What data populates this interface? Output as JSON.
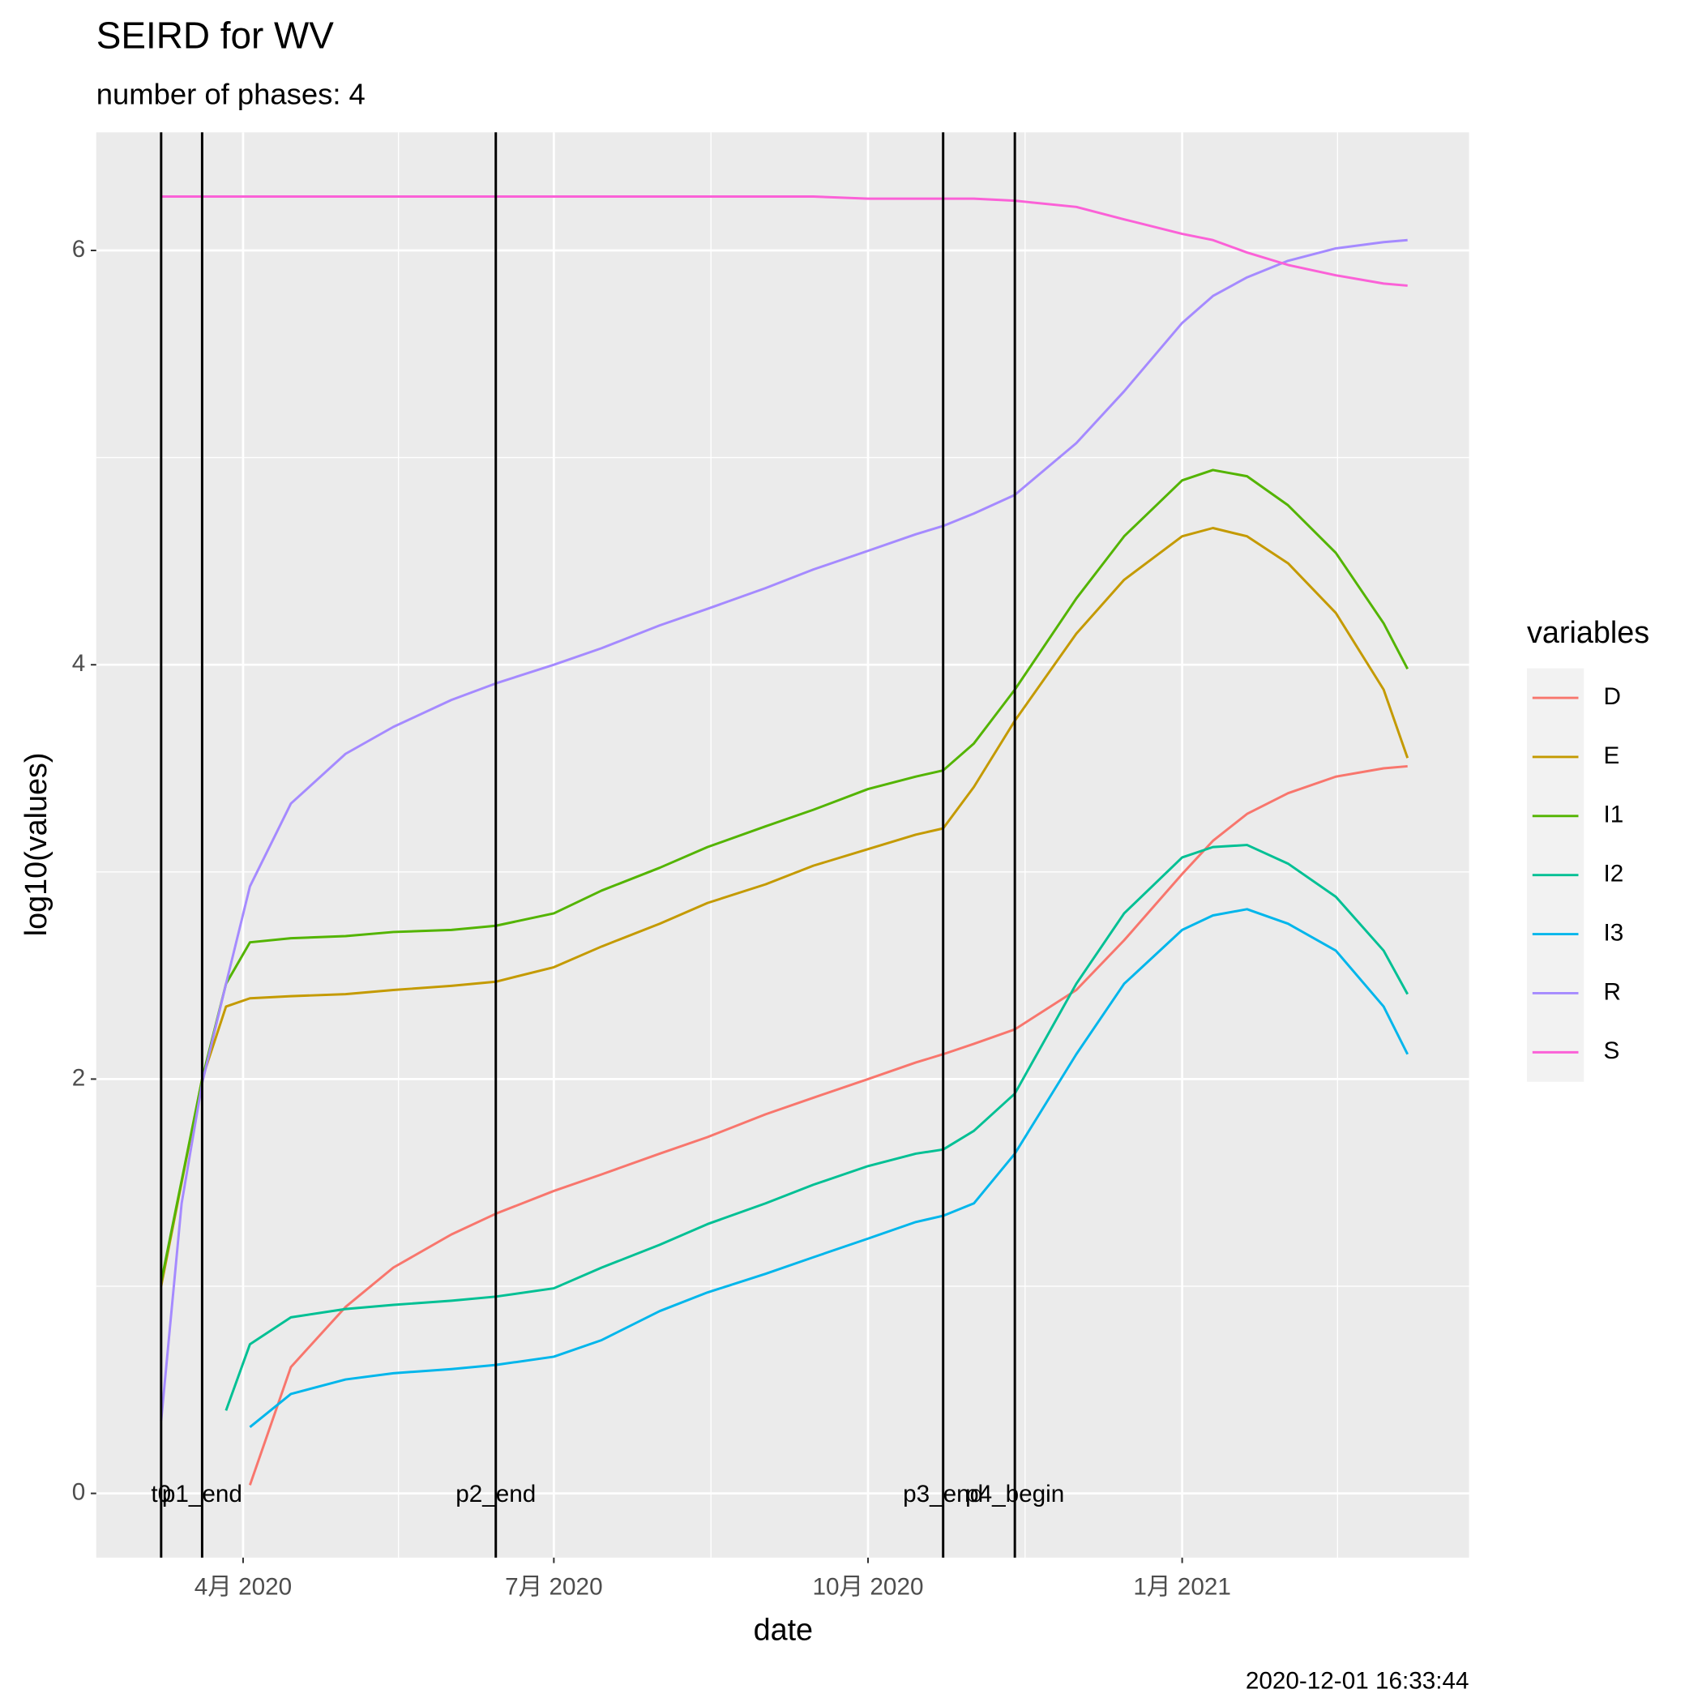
{
  "chart_data": {
    "type": "line",
    "title": "SEIRD for WV",
    "subtitle": "number of phases: 4",
    "x_label": "date",
    "y_label": "log10(values)",
    "legend_title": "variables",
    "caption": "2020-12-01 16:33:44",
    "legend_position": "right",
    "grid": true,
    "xlim": [
      "2020-02-18",
      "2021-03-26"
    ],
    "xticks": [
      {
        "value": "2020-04-01",
        "label": "4月 2020"
      },
      {
        "value": "2020-07-01",
        "label": "7月 2020"
      },
      {
        "value": "2020-10-01",
        "label": "10月 2020"
      },
      {
        "value": "2021-01-01",
        "label": "1月 2021"
      }
    ],
    "ylim": [
      -0.31,
      6.57
    ],
    "yticks": [
      0,
      2,
      4,
      6
    ],
    "vlines": [
      {
        "x": "2020-03-08",
        "label": "t0"
      },
      {
        "x": "2020-03-20",
        "label": "p1_end"
      },
      {
        "x": "2020-06-14",
        "label": "p2_end"
      },
      {
        "x": "2020-10-23",
        "label": "p3_end"
      },
      {
        "x": "2020-11-13",
        "label": "p4_begin"
      }
    ],
    "x": [
      "2020-03-08",
      "2020-03-14",
      "2020-03-20",
      "2020-03-27",
      "2020-04-03",
      "2020-04-15",
      "2020-05-01",
      "2020-05-15",
      "2020-06-01",
      "2020-06-14",
      "2020-07-01",
      "2020-07-15",
      "2020-08-01",
      "2020-08-15",
      "2020-09-01",
      "2020-09-15",
      "2020-10-01",
      "2020-10-15",
      "2020-10-23",
      "2020-11-01",
      "2020-11-13",
      "2020-12-01",
      "2020-12-15",
      "2021-01-01",
      "2021-01-10",
      "2021-01-20",
      "2021-02-01",
      "2021-02-15",
      "2021-03-01",
      "2021-03-08"
    ],
    "series": [
      {
        "name": "D",
        "color": "#F8766D",
        "values": [
          null,
          null,
          null,
          null,
          0.04,
          0.61,
          0.9,
          1.09,
          1.25,
          1.35,
          1.46,
          1.54,
          1.64,
          1.72,
          1.83,
          1.91,
          2.0,
          2.08,
          2.12,
          2.17,
          2.24,
          2.43,
          2.67,
          2.99,
          3.15,
          3.28,
          3.38,
          3.46,
          3.5,
          3.51
        ]
      },
      {
        "name": "E",
        "color": "#C49A00",
        "values": [
          1.0,
          1.5,
          2.0,
          2.35,
          2.39,
          2.4,
          2.41,
          2.43,
          2.45,
          2.47,
          2.54,
          2.64,
          2.75,
          2.85,
          2.94,
          3.03,
          3.11,
          3.18,
          3.21,
          3.41,
          3.73,
          4.15,
          4.41,
          4.62,
          4.66,
          4.62,
          4.49,
          4.25,
          3.88,
          3.55
        ]
      },
      {
        "name": "I1",
        "color": "#53B400",
        "values": [
          1.02,
          1.51,
          2.0,
          2.46,
          2.66,
          2.68,
          2.69,
          2.71,
          2.72,
          2.74,
          2.8,
          2.91,
          3.02,
          3.12,
          3.22,
          3.3,
          3.4,
          3.46,
          3.49,
          3.62,
          3.88,
          4.32,
          4.62,
          4.89,
          4.94,
          4.91,
          4.77,
          4.54,
          4.2,
          3.98
        ]
      },
      {
        "name": "I2",
        "color": "#00C094",
        "values": [
          null,
          null,
          null,
          0.4,
          0.72,
          0.85,
          0.89,
          0.91,
          0.93,
          0.95,
          0.99,
          1.09,
          1.2,
          1.3,
          1.4,
          1.49,
          1.58,
          1.64,
          1.66,
          1.75,
          1.93,
          2.46,
          2.8,
          3.07,
          3.12,
          3.13,
          3.04,
          2.88,
          2.62,
          2.41
        ]
      },
      {
        "name": "I3",
        "color": "#00B6EB",
        "values": [
          null,
          null,
          null,
          null,
          0.32,
          0.48,
          0.55,
          0.58,
          0.6,
          0.62,
          0.66,
          0.74,
          0.88,
          0.97,
          1.06,
          1.14,
          1.23,
          1.31,
          1.34,
          1.4,
          1.64,
          2.12,
          2.46,
          2.72,
          2.79,
          2.82,
          2.75,
          2.62,
          2.35,
          2.12
        ]
      },
      {
        "name": "R",
        "color": "#A58AFF",
        "values": [
          0.35,
          1.4,
          1.98,
          2.46,
          2.93,
          3.33,
          3.57,
          3.7,
          3.83,
          3.91,
          4.0,
          4.08,
          4.19,
          4.27,
          4.37,
          4.46,
          4.55,
          4.63,
          4.67,
          4.73,
          4.82,
          5.07,
          5.32,
          5.65,
          5.78,
          5.87,
          5.95,
          6.01,
          6.04,
          6.05
        ]
      },
      {
        "name": "S",
        "color": "#FB61D7",
        "values": [
          6.26,
          6.26,
          6.26,
          6.26,
          6.26,
          6.26,
          6.26,
          6.26,
          6.26,
          6.26,
          6.26,
          6.26,
          6.26,
          6.26,
          6.26,
          6.26,
          6.25,
          6.25,
          6.25,
          6.25,
          6.24,
          6.21,
          6.15,
          6.08,
          6.05,
          5.99,
          5.93,
          5.88,
          5.84,
          5.83
        ]
      }
    ]
  }
}
